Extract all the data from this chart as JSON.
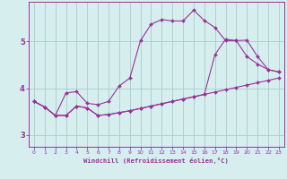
{
  "xlabel": "Windchill (Refroidissement éolien,°C)",
  "background_color": "#d6eeee",
  "line_color": "#993399",
  "grid_color": "#a8cccc",
  "xlim": [
    -0.5,
    23.5
  ],
  "ylim": [
    2.75,
    5.85
  ],
  "yticks": [
    3,
    4,
    5
  ],
  "xticks": [
    0,
    1,
    2,
    3,
    4,
    5,
    6,
    7,
    8,
    9,
    10,
    11,
    12,
    13,
    14,
    15,
    16,
    17,
    18,
    19,
    20,
    21,
    22,
    23
  ],
  "series1_x": [
    0,
    1,
    2,
    3,
    4,
    5,
    6,
    7,
    8,
    9,
    10,
    11,
    12,
    13,
    14,
    15,
    16,
    17,
    18,
    19,
    20,
    21,
    22,
    23
  ],
  "series1_y": [
    3.72,
    3.6,
    3.42,
    3.42,
    3.62,
    3.58,
    3.42,
    3.44,
    3.48,
    3.52,
    3.57,
    3.62,
    3.67,
    3.72,
    3.77,
    3.82,
    3.87,
    3.92,
    3.97,
    4.02,
    4.07,
    4.12,
    4.17,
    4.22
  ],
  "series2_x": [
    0,
    1,
    2,
    3,
    4,
    5,
    6,
    7,
    8,
    9,
    10,
    11,
    12,
    13,
    14,
    15,
    16,
    17,
    18,
    19,
    20,
    21,
    22,
    23
  ],
  "series2_y": [
    3.72,
    3.6,
    3.42,
    3.9,
    3.93,
    3.68,
    3.65,
    3.72,
    4.05,
    4.22,
    5.02,
    5.37,
    5.47,
    5.44,
    5.44,
    5.67,
    5.45,
    5.3,
    5.02,
    5.02,
    4.68,
    4.52,
    4.4,
    4.35
  ],
  "series3_x": [
    0,
    1,
    2,
    3,
    4,
    5,
    6,
    7,
    8,
    9,
    10,
    11,
    12,
    13,
    14,
    15,
    16,
    17,
    18,
    19,
    20,
    21,
    22,
    23
  ],
  "series3_y": [
    3.72,
    3.6,
    3.42,
    3.42,
    3.62,
    3.58,
    3.42,
    3.44,
    3.48,
    3.52,
    3.57,
    3.62,
    3.67,
    3.72,
    3.77,
    3.82,
    3.87,
    4.72,
    5.05,
    5.02,
    5.03,
    4.68,
    4.4,
    4.35
  ]
}
